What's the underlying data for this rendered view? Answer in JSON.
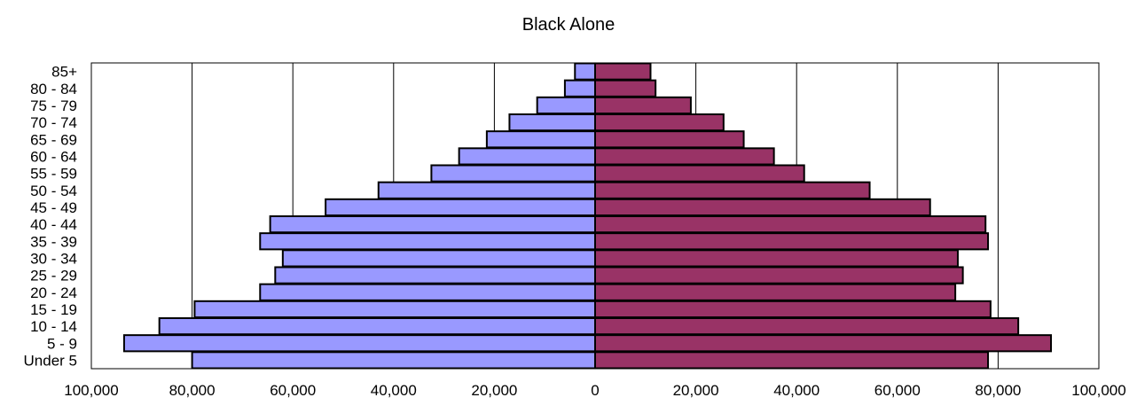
{
  "chart_data": {
    "type": "bar",
    "orientation": "horizontal",
    "layout": "population-pyramid",
    "title": "Black Alone",
    "categories": [
      "85+",
      "80 - 84",
      "75 - 79",
      "70 - 74",
      "65 - 69",
      "60 - 64",
      "55 - 59",
      "50 - 54",
      "45 - 49",
      "40 - 44",
      "35 - 39",
      "30 - 34",
      "25 - 29",
      "20 - 24",
      "15 - 19",
      "10 - 14",
      "5 - 9",
      "Under 5"
    ],
    "series": [
      {
        "side": "left",
        "color": "#9999ff",
        "values": [
          4000,
          6000,
          11500,
          17000,
          21500,
          27000,
          32500,
          43000,
          53500,
          64500,
          66500,
          62000,
          63500,
          66500,
          79500,
          86500,
          93500,
          80000
        ]
      },
      {
        "side": "right",
        "color": "#993366",
        "values": [
          11000,
          12000,
          19000,
          25500,
          29500,
          35500,
          41500,
          54500,
          66500,
          77500,
          78000,
          72000,
          73000,
          71500,
          78500,
          84000,
          90500,
          78000
        ]
      }
    ],
    "x_ticks": [
      "100,000",
      "80,000",
      "60,000",
      "40,000",
      "20,000",
      "0",
      "20,000",
      "40,000",
      "60,000",
      "80,000",
      "100,000"
    ],
    "xlim": [
      -100000,
      100000
    ],
    "grid": true,
    "legend": "none"
  }
}
